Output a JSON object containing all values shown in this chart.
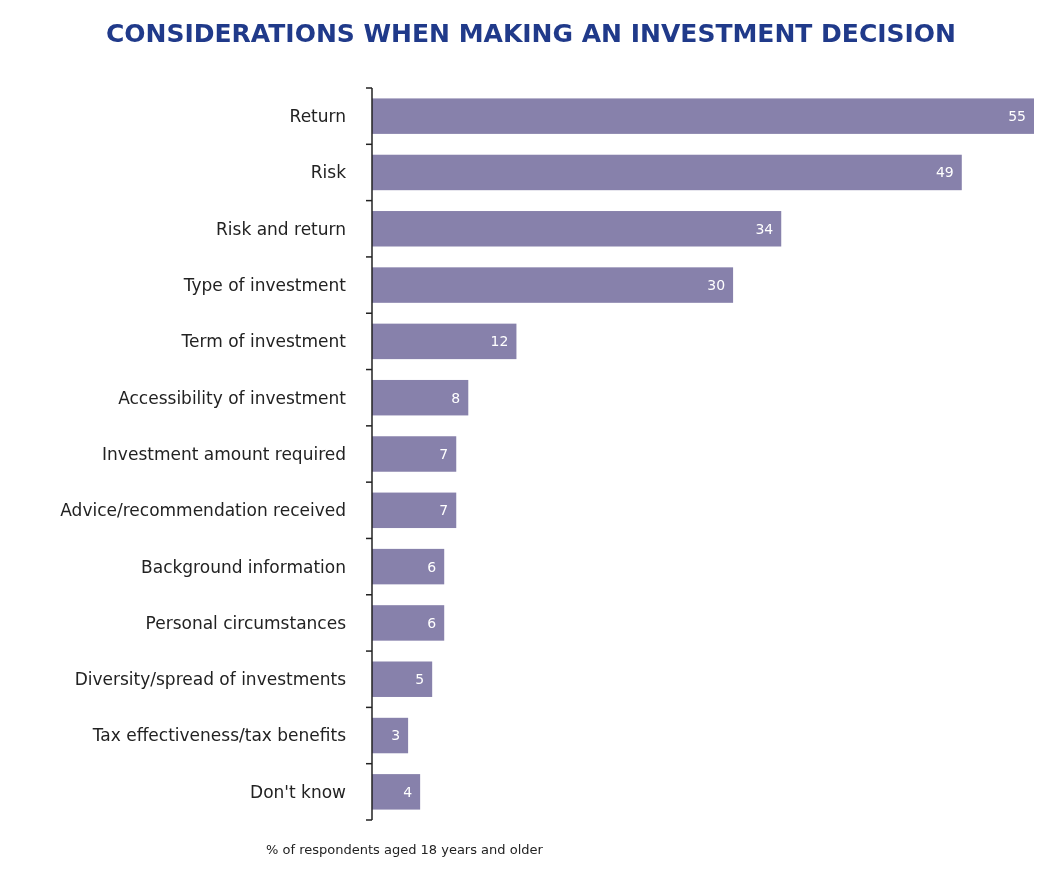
{
  "chart_data": {
    "type": "bar",
    "orientation": "horizontal",
    "title": "CONSIDERATIONS WHEN MAKING AN INVESTMENT DECISION",
    "xlabel": "% of respondents aged 18 years and older",
    "categories": [
      "Return",
      "Risk",
      "Risk and return",
      "Type of investment",
      "Term of investment",
      "Accessibility of investment",
      "Investment amount required",
      "Advice/recommendation received",
      "Background information",
      "Personal circumstances",
      "Diversity/spread of investments",
      "Tax effectiveness/tax benefits",
      "Don't know"
    ],
    "values": [
      55,
      49,
      34,
      30,
      12,
      8,
      7,
      7,
      6,
      6,
      5,
      3,
      4
    ],
    "color": "#8781ab",
    "data_labels": true
  }
}
